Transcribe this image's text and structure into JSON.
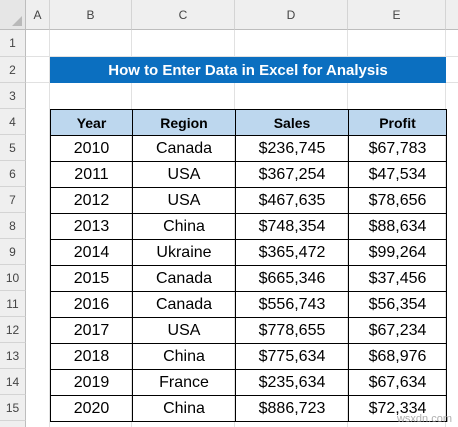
{
  "columns": [
    "A",
    "B",
    "C",
    "D",
    "E"
  ],
  "rows": [
    "1",
    "2",
    "3",
    "4",
    "5",
    "6",
    "7",
    "8",
    "9",
    "10",
    "11",
    "12",
    "13",
    "14",
    "15"
  ],
  "title": "How to Enter Data in Excel for Analysis",
  "table": {
    "headers": [
      "Year",
      "Region",
      "Sales",
      "Profit"
    ],
    "rows": [
      [
        "2010",
        "Canada",
        "$236,745",
        "$67,783"
      ],
      [
        "2011",
        "USA",
        "$367,254",
        "$47,534"
      ],
      [
        "2012",
        "USA",
        "$467,635",
        "$78,656"
      ],
      [
        "2013",
        "China",
        "$748,354",
        "$88,634"
      ],
      [
        "2014",
        "Ukraine",
        "$365,472",
        "$99,264"
      ],
      [
        "2015",
        "Canada",
        "$665,346",
        "$37,456"
      ],
      [
        "2016",
        "Canada",
        "$556,743",
        "$56,354"
      ],
      [
        "2017",
        "USA",
        "$778,655",
        "$67,234"
      ],
      [
        "2018",
        "China",
        "$775,634",
        "$68,976"
      ],
      [
        "2019",
        "France",
        "$235,634",
        "$67,634"
      ],
      [
        "2020",
        "China",
        "$886,723",
        "$72,334"
      ]
    ]
  },
  "watermark": "wsxdn.com",
  "colors": {
    "title_bg": "#0b6fc0",
    "header_bg": "#bdd7ee"
  }
}
